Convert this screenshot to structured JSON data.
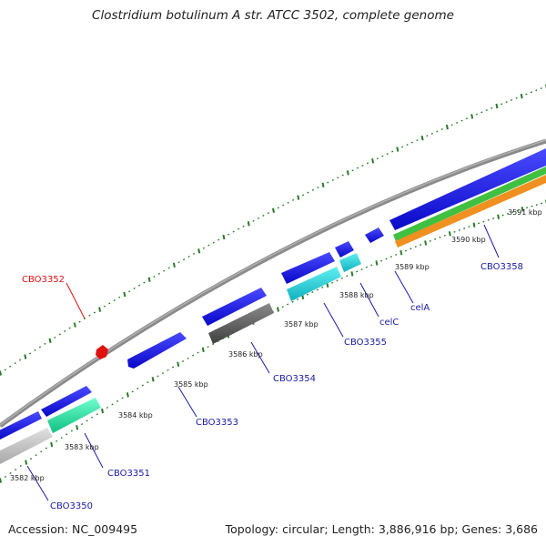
{
  "title": "Clostridium botulinum A str. ATCC 3502, complete genome",
  "footer": {
    "accession": "Accession: NC_009495",
    "summary": "Topology: circular; Length: 3,886,916 bp; Genes: 3,686"
  },
  "colors": {
    "backbone": "#8a8a8a",
    "tick": "#2a7a2a",
    "label_blue": "#1a1aa8",
    "label_red": "#e01010",
    "gene_blue": "#1010e0",
    "gene_cyan": "#20c8d0",
    "gene_teal": "#20e0a0",
    "gene_gray": "#606060",
    "gene_lightgray": "#c0c0c0",
    "gene_green": "#40c040",
    "gene_orange": "#f09020",
    "gene_red": "#e01010"
  },
  "scale_labels": [
    "3582 kbp",
    "3583 kbp",
    "3584 kbp",
    "3585 kbp",
    "3586 kbp",
    "3587 kbp",
    "3588 kbp",
    "3589 kbp",
    "3590 kbp",
    "3591 kbp"
  ],
  "gene_labels": [
    {
      "text": "CBO3350",
      "color": "blue"
    },
    {
      "text": "CBO3351",
      "color": "blue"
    },
    {
      "text": "CBO3352",
      "color": "red"
    },
    {
      "text": "CBO3353",
      "color": "blue"
    },
    {
      "text": "CBO3354",
      "color": "blue"
    },
    {
      "text": "CBO3355",
      "color": "blue"
    },
    {
      "text": "celC",
      "color": "blue"
    },
    {
      "text": "celA",
      "color": "blue"
    },
    {
      "text": "CBO3358",
      "color": "blue"
    }
  ]
}
